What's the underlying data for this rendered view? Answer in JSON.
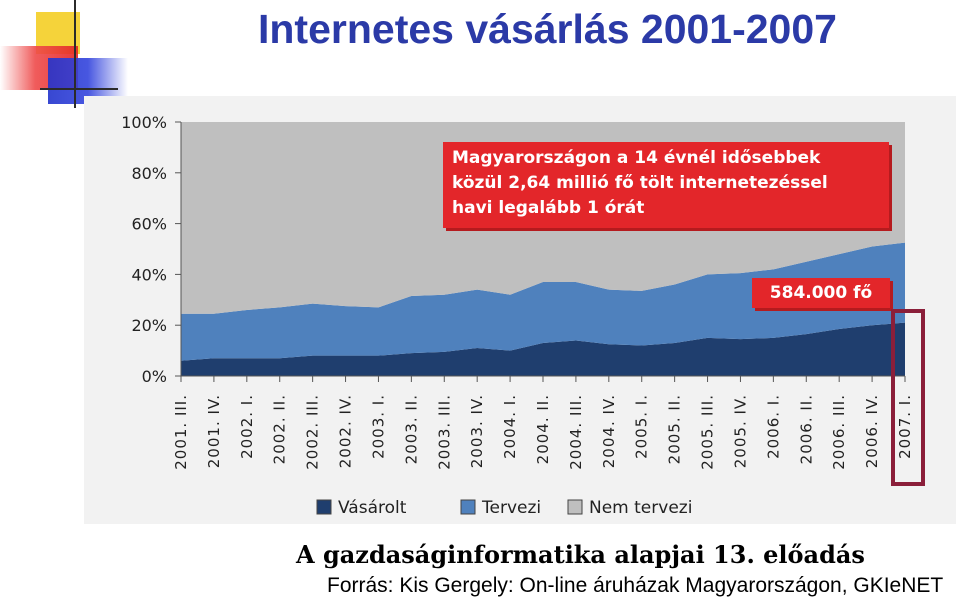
{
  "slide": {
    "title": "Internetes vásárlás 2001-2007",
    "footer_title": "A gazdaságinformatika alapjai 13. előadás",
    "footer_source": "Forrás: Kis  Gergely: On-line áruházak Magyarországon, GKIeNET"
  },
  "callouts": {
    "main_lines": [
      "Magyarországon a 14 évnél idősebbek",
      "közül 2,64 millió fő tölt internetezéssel",
      "havi legalább 1 órát"
    ],
    "highlight": "584.000 fő"
  },
  "chart_data": {
    "type": "area",
    "stacked": true,
    "categories": [
      "2001. III.",
      "2001. IV.",
      "2002. I.",
      "2002. II.",
      "2002. III.",
      "2002. IV.",
      "2003. I.",
      "2003. II.",
      "2003. III.",
      "2003. IV.",
      "2004. I.",
      "2004. II.",
      "2004. III.",
      "2004. IV.",
      "2005. I.",
      "2005. II.",
      "2005. III.",
      "2005. IV.",
      "2006. I.",
      "2006. II.",
      "2006. III.",
      "2006. IV.",
      "2007. I."
    ],
    "series": [
      {
        "name": "Vásárolt",
        "color": "#1f3e6e",
        "values": [
          6,
          7,
          7,
          7,
          8,
          8,
          8,
          9,
          9.5,
          11,
          10,
          13,
          14,
          12.5,
          12,
          13,
          15,
          14.5,
          15,
          16.5,
          18.5,
          20,
          21
        ]
      },
      {
        "name": "Tervezi",
        "color": "#4f81bd",
        "values": [
          18.5,
          17.5,
          19,
          20,
          20.5,
          19.5,
          19,
          22.5,
          22.5,
          23,
          22,
          24,
          23,
          21.5,
          21.5,
          23,
          25,
          26,
          27,
          28.5,
          29.5,
          31,
          31.5
        ]
      },
      {
        "name": "Nem tervezi",
        "color": "#bfbfbf",
        "values": [
          75.5,
          75.5,
          74,
          73,
          71.5,
          72.5,
          73,
          68.5,
          68,
          66,
          68,
          63,
          63,
          66,
          66.5,
          64,
          60,
          59.5,
          58,
          55,
          52,
          49,
          47.5
        ]
      }
    ],
    "yticks": [
      "0%",
      "20%",
      "40%",
      "60%",
      "80%",
      "100%"
    ],
    "ylim": [
      0,
      100
    ],
    "legend_position": "bottom"
  },
  "colors": {
    "title": "#2b3aa7",
    "callout_bg": "#e3262a",
    "highlight_border": "#8b1f3a"
  }
}
